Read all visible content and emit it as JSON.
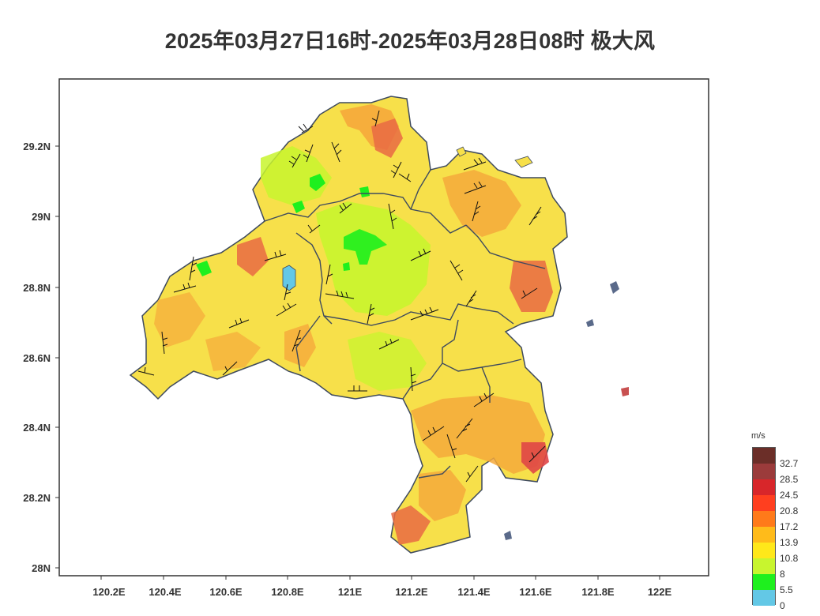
{
  "title": "2025年03月27日16时-2025年03月28日08时 极大风",
  "x_ticks": [
    "120.2E",
    "120.4E",
    "120.6E",
    "120.8E",
    "121E",
    "121.2E",
    "121.4E",
    "121.6E",
    "121.8E",
    "122E"
  ],
  "y_ticks": [
    "29.2N",
    "29N",
    "28.8N",
    "28.6N",
    "28.4N",
    "28.2N",
    "28N"
  ],
  "legend": {
    "unit": "m/s",
    "levels": [
      "32.7",
      "28.5",
      "24.5",
      "20.8",
      "17.2",
      "13.9",
      "10.8",
      "8",
      "5.5",
      "0"
    ],
    "colors": [
      "#6b2e28",
      "#9b3b3b",
      "#d8262a",
      "#ff3f1f",
      "#ff7a1a",
      "#ffbb1a",
      "#ffe81a",
      "#c8f52e",
      "#1ef01e",
      "#63c8e6"
    ]
  }
}
